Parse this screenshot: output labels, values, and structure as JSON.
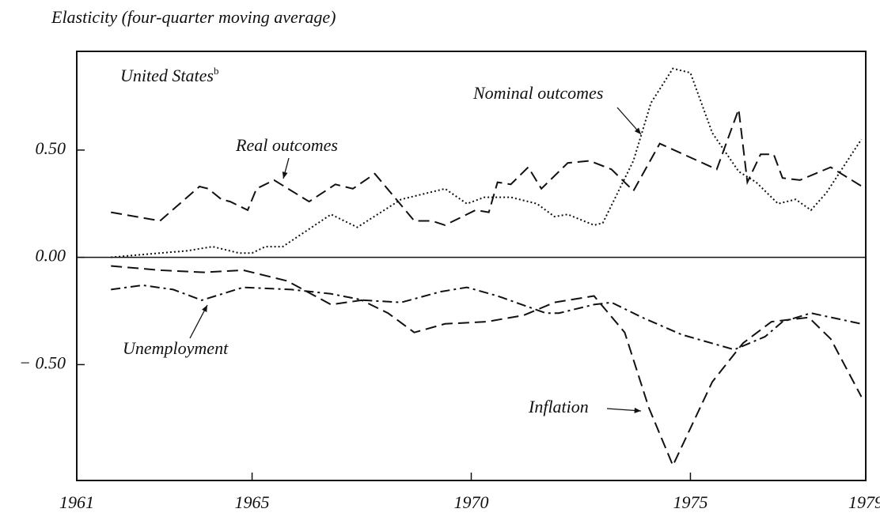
{
  "chart_data": {
    "type": "line",
    "axis_title": "Elasticity (four-quarter moving average)",
    "panel_label": "United States",
    "panel_note": "b",
    "xlim": [
      1961,
      1979
    ],
    "xticks": [
      1961,
      1965,
      1970,
      1975,
      1979
    ],
    "ylim": [
      -1.04,
      0.96
    ],
    "yticks": [
      {
        "value": 0.5,
        "label": "0.50"
      },
      {
        "value": 0,
        "label": "0.00"
      },
      {
        "value": -0.5,
        "label": "− 0.50"
      }
    ],
    "zero_line": true,
    "series": [
      {
        "name": "Real outcomes",
        "color": "#111111",
        "style": "dashed",
        "x": [
          1961.78,
          1962.9,
          1963.8,
          1964.0,
          1964.3,
          1964.5,
          1964.9,
          1965.1,
          1965.5,
          1966.3,
          1966.9,
          1967.3,
          1967.8,
          1968.7,
          1969.1,
          1969.4,
          1970.1,
          1970.4,
          1970.6,
          1970.9,
          1971.3,
          1971.6,
          1972.2,
          1972.7,
          1973.2,
          1973.7,
          1974.3,
          1975.6,
          1976.1,
          1976.3,
          1976.6,
          1976.9,
          1977.1,
          1977.5,
          1978.2,
          1979.0
        ],
        "values": [
          0.21,
          0.17,
          0.33,
          0.32,
          0.27,
          0.26,
          0.22,
          0.32,
          0.36,
          0.26,
          0.34,
          0.32,
          0.39,
          0.17,
          0.17,
          0.15,
          0.22,
          0.21,
          0.35,
          0.34,
          0.42,
          0.32,
          0.44,
          0.45,
          0.41,
          0.31,
          0.53,
          0.41,
          0.69,
          0.35,
          0.48,
          0.48,
          0.37,
          0.36,
          0.42,
          0.32
        ]
      },
      {
        "name": "Nominal outcomes",
        "color": "#111111",
        "style": "dotted",
        "x": [
          1961.78,
          1962.9,
          1963.5,
          1964.1,
          1964.7,
          1965.0,
          1965.3,
          1965.7,
          1966.8,
          1967.4,
          1968.4,
          1969.4,
          1969.9,
          1970.3,
          1970.9,
          1971.5,
          1971.9,
          1972.2,
          1972.8,
          1973.0,
          1973.7,
          1974.1,
          1974.6,
          1975.0,
          1975.5,
          1976.1,
          1976.5,
          1977.0,
          1977.4,
          1977.75,
          1978.1,
          1978.9
        ],
        "values": [
          0.0,
          0.02,
          0.03,
          0.05,
          0.02,
          0.02,
          0.05,
          0.05,
          0.2,
          0.14,
          0.27,
          0.32,
          0.25,
          0.28,
          0.28,
          0.25,
          0.19,
          0.2,
          0.15,
          0.16,
          0.45,
          0.72,
          0.88,
          0.86,
          0.58,
          0.4,
          0.35,
          0.25,
          0.27,
          0.22,
          0.3,
          0.55
        ]
      },
      {
        "name": "Unemployment",
        "color": "#111111",
        "style": "dashdot",
        "x": [
          1961.78,
          1962.5,
          1963.2,
          1963.85,
          1964.8,
          1965.9,
          1966.8,
          1967.55,
          1968.4,
          1969.3,
          1969.9,
          1970.6,
          1971.7,
          1972.0,
          1972.8,
          1973.2,
          1973.9,
          1974.8,
          1976.0,
          1976.7,
          1977.1,
          1977.75,
          1978.9
        ],
        "values": [
          -0.15,
          -0.13,
          -0.15,
          -0.2,
          -0.14,
          -0.15,
          -0.17,
          -0.2,
          -0.21,
          -0.16,
          -0.14,
          -0.18,
          -0.26,
          -0.26,
          -0.22,
          -0.21,
          -0.28,
          -0.36,
          -0.43,
          -0.37,
          -0.3,
          -0.26,
          -0.31
        ]
      },
      {
        "name": "Inflation",
        "color": "#111111",
        "style": "dashed",
        "x": [
          1961.78,
          1962.9,
          1963.9,
          1964.8,
          1965.8,
          1966.8,
          1967.5,
          1968.1,
          1968.7,
          1969.4,
          1970.35,
          1971.2,
          1971.9,
          1972.8,
          1973.5,
          1974.05,
          1974.6,
          1975.5,
          1976.2,
          1976.85,
          1977.7,
          1978.2,
          1978.9
        ],
        "values": [
          -0.04,
          -0.06,
          -0.07,
          -0.06,
          -0.11,
          -0.22,
          -0.2,
          -0.26,
          -0.35,
          -0.31,
          -0.3,
          -0.27,
          -0.21,
          -0.18,
          -0.35,
          -0.7,
          -0.97,
          -0.58,
          -0.4,
          -0.3,
          -0.28,
          -0.38,
          -0.65
        ]
      }
    ]
  }
}
